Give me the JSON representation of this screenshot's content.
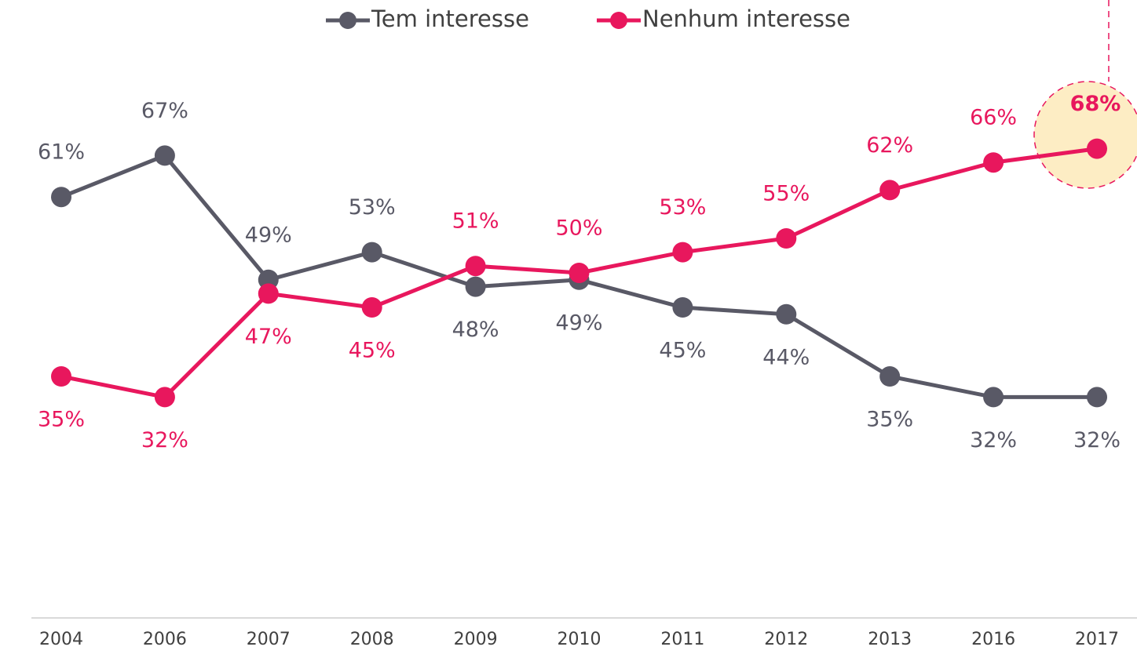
{
  "chart_data": {
    "type": "line",
    "categories": [
      "2004",
      "2006",
      "2007",
      "2008",
      "2009",
      "2010",
      "2011",
      "2012",
      "2013",
      "2016",
      "2017"
    ],
    "series": [
      {
        "name": "Tem interesse",
        "color": "#595966",
        "values": [
          61,
          67,
          49,
          53,
          48,
          49,
          45,
          44,
          35,
          32,
          32
        ],
        "value_labels": [
          "61%",
          "67%",
          "49%",
          "53%",
          "48%",
          "49%",
          "45%",
          "44%",
          "35%",
          "32%",
          "32%"
        ]
      },
      {
        "name": "Nenhum interesse",
        "color": "#e8175d",
        "values": [
          35,
          32,
          47,
          45,
          51,
          50,
          53,
          55,
          62,
          66,
          68
        ],
        "value_labels": [
          "35%",
          "32%",
          "47%",
          "45%",
          "51%",
          "50%",
          "53%",
          "55%",
          "62%",
          "66%",
          "68%"
        ]
      }
    ],
    "ylim": [
      0,
      85
    ]
  }
}
